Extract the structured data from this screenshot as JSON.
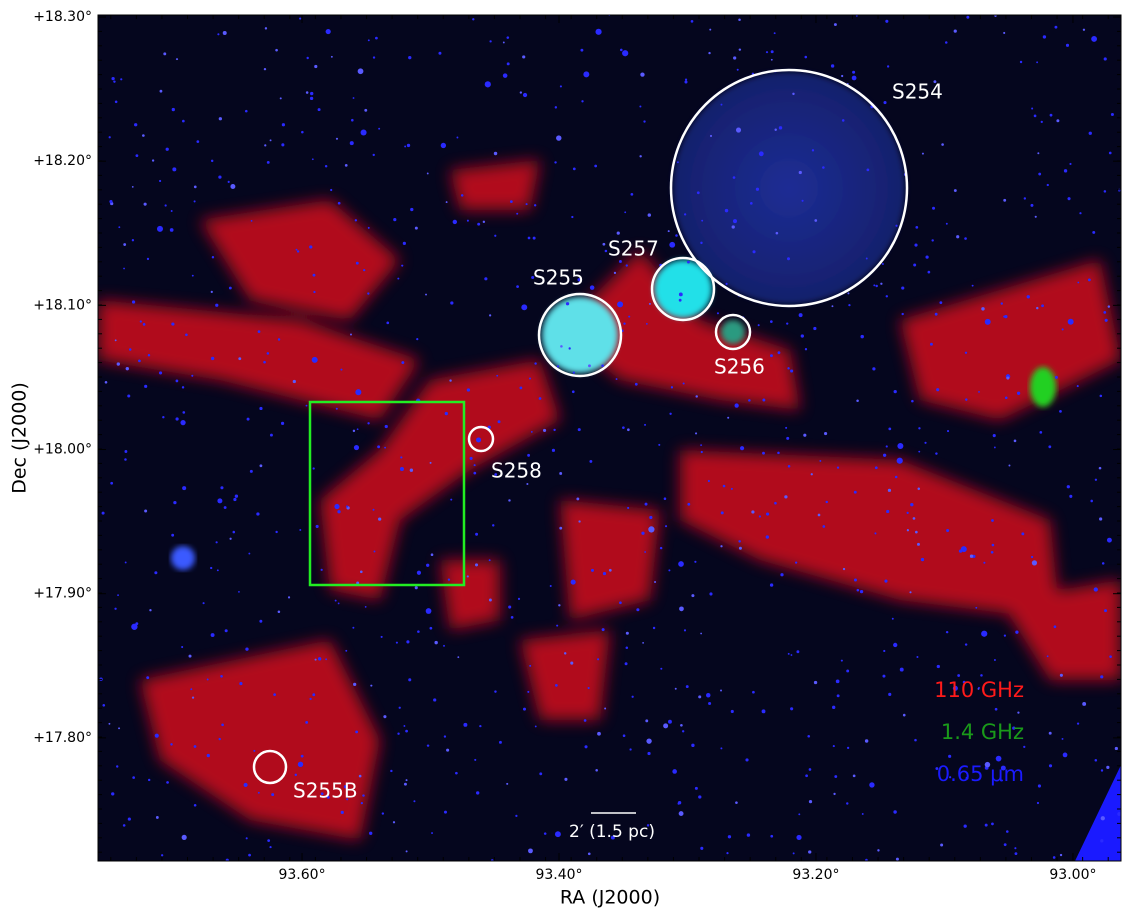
{
  "figure": {
    "x_axis": {
      "label": "RA (J2000)",
      "lim": [
        93.7588,
        92.9626
      ],
      "ticks": [
        {
          "value": 93.6,
          "label": "93.60°"
        },
        {
          "value": 93.4,
          "label": "93.40°"
        },
        {
          "value": 93.2,
          "label": "93.20°"
        },
        {
          "value": 93.0,
          "label": "93.00°"
        }
      ]
    },
    "y_axis": {
      "label": "Dec (J2000)",
      "lim": [
        17.7146,
        18.3014
      ],
      "ticks": [
        {
          "value": 18.3,
          "label": "+18.30°"
        },
        {
          "value": 18.2,
          "label": "+18.20°"
        },
        {
          "value": 18.1,
          "label": "+18.10°"
        },
        {
          "value": 18.0,
          "label": "+18.00°"
        },
        {
          "value": 17.9,
          "label": "+17.90°"
        },
        {
          "value": 17.8,
          "label": "+17.80°"
        }
      ]
    },
    "sources": [
      "S254",
      "S257",
      "S255",
      "S256",
      "S258",
      "S255B"
    ],
    "legend": [
      {
        "label": "110 GHz",
        "color": "#ff1a1a"
      },
      {
        "label": "1.4 GHz",
        "color": "#1a9a1a"
      },
      {
        "label": "0.65 μm",
        "color": "#1a1aff"
      }
    ],
    "scale_bar": "2′ (1.5 pc)"
  }
}
